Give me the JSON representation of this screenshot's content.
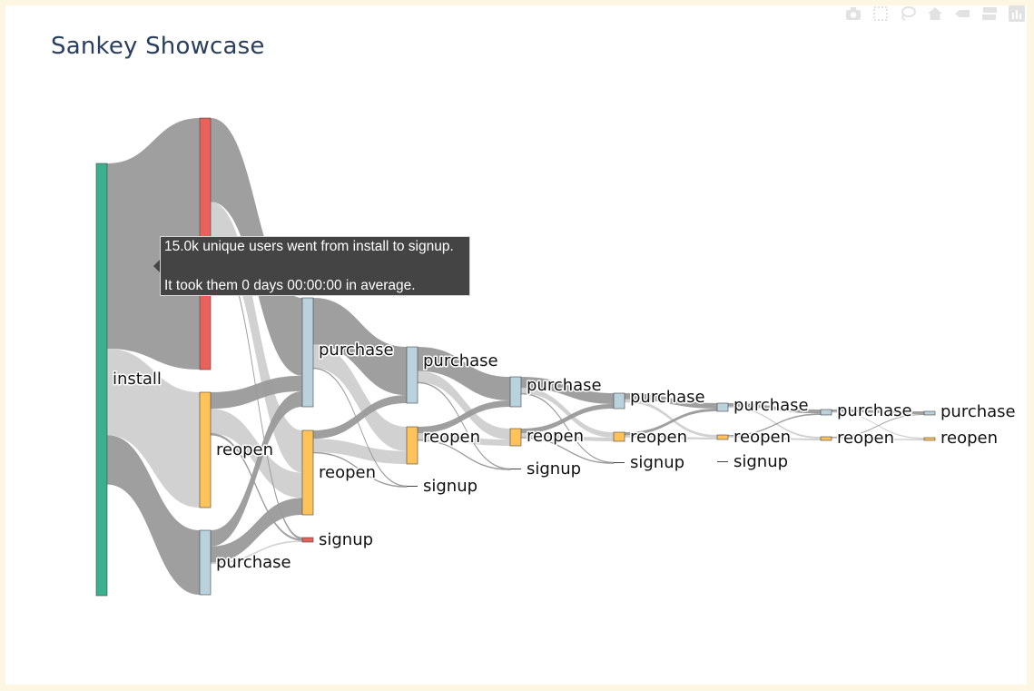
{
  "chart_data": {
    "type": "sankey",
    "title": "Sankey Showcase",
    "nodes": [
      {
        "id": "n0",
        "label": "install",
        "stage": 0,
        "value": 35.0,
        "color": "#3bb08f"
      },
      {
        "id": "n1",
        "label": "signup",
        "stage": 1,
        "value": 15.0,
        "color": "#e8615a"
      },
      {
        "id": "n2",
        "label": "reopen",
        "stage": 1,
        "value": 7.0,
        "color": "#ffc35a"
      },
      {
        "id": "n3",
        "label": "purchase",
        "stage": 1,
        "value": 4.0,
        "color": "#b9d2dd"
      },
      {
        "id": "n4",
        "label": "purchase",
        "stage": 2,
        "value": 7.0,
        "color": "#b9d2dd"
      },
      {
        "id": "n5",
        "label": "reopen",
        "stage": 2,
        "value": 5.0,
        "color": "#ffc35a"
      },
      {
        "id": "n6",
        "label": "signup",
        "stage": 2,
        "value": 0.3,
        "color": "#e8615a"
      },
      {
        "id": "n7",
        "label": "purchase",
        "stage": 3,
        "value": 3.5,
        "color": "#b9d2dd"
      },
      {
        "id": "n8",
        "label": "reopen",
        "stage": 3,
        "value": 2.3,
        "color": "#ffc35a"
      },
      {
        "id": "n9",
        "label": "signup",
        "stage": 3,
        "value": 0.05,
        "color": "#e8615a"
      },
      {
        "id": "n10",
        "label": "purchase",
        "stage": 4,
        "value": 1.9,
        "color": "#b9d2dd"
      },
      {
        "id": "n11",
        "label": "reopen",
        "stage": 4,
        "value": 1.1,
        "color": "#ffc35a"
      },
      {
        "id": "n12",
        "label": "signup",
        "stage": 4,
        "value": 0.05,
        "color": "#e8615a"
      },
      {
        "id": "n13",
        "label": "purchase",
        "stage": 5,
        "value": 1.0,
        "color": "#b9d2dd"
      },
      {
        "id": "n14",
        "label": "reopen",
        "stage": 5,
        "value": 0.6,
        "color": "#ffc35a"
      },
      {
        "id": "n15",
        "label": "signup",
        "stage": 5,
        "value": 0.05,
        "color": "#e8615a"
      },
      {
        "id": "n16",
        "label": "purchase",
        "stage": 6,
        "value": 0.6,
        "color": "#b9d2dd"
      },
      {
        "id": "n17",
        "label": "reopen",
        "stage": 6,
        "value": 0.35,
        "color": "#ffc35a"
      },
      {
        "id": "n18",
        "label": "signup",
        "stage": 6,
        "value": 0.05,
        "color": "#e8615a"
      },
      {
        "id": "n19",
        "label": "purchase",
        "stage": 7,
        "value": 0.35,
        "color": "#b9d2dd"
      },
      {
        "id": "n20",
        "label": "reopen",
        "stage": 7,
        "value": 0.2,
        "color": "#ffc35a"
      },
      {
        "id": "n21",
        "label": "purchase",
        "stage": 8,
        "value": 0.2,
        "color": "#b9d2dd"
      },
      {
        "id": "n22",
        "label": "reopen",
        "stage": 8,
        "value": 0.1,
        "color": "#ffc35a"
      }
    ],
    "links": [
      {
        "source": "n0",
        "target": "n1",
        "value": 15.0,
        "tone": "dark"
      },
      {
        "source": "n0",
        "target": "n2",
        "value": 7.0,
        "tone": "light"
      },
      {
        "source": "n0",
        "target": "n3",
        "value": 4.0,
        "tone": "dark"
      },
      {
        "source": "n1",
        "target": "n4",
        "value": 5.0,
        "tone": "dark"
      },
      {
        "source": "n1",
        "target": "n5",
        "value": 2.5,
        "tone": "light"
      },
      {
        "source": "n1",
        "target": "n6",
        "value": 0.1,
        "tone": "line"
      },
      {
        "source": "n2",
        "target": "n4",
        "value": 1.0,
        "tone": "dark"
      },
      {
        "source": "n2",
        "target": "n5",
        "value": 1.5,
        "tone": "light"
      },
      {
        "source": "n2",
        "target": "n6",
        "value": 0.1,
        "tone": "line"
      },
      {
        "source": "n3",
        "target": "n4",
        "value": 1.0,
        "tone": "dark"
      },
      {
        "source": "n3",
        "target": "n5",
        "value": 1.0,
        "tone": "dark"
      },
      {
        "source": "n3",
        "target": "n6",
        "value": 0.1,
        "tone": "light"
      },
      {
        "source": "n4",
        "target": "n7",
        "value": 3.0,
        "tone": "dark"
      },
      {
        "source": "n4",
        "target": "n8",
        "value": 1.5,
        "tone": "light"
      },
      {
        "source": "n4",
        "target": "n9",
        "value": 0.02,
        "tone": "line"
      },
      {
        "source": "n5",
        "target": "n7",
        "value": 0.5,
        "tone": "dark"
      },
      {
        "source": "n5",
        "target": "n8",
        "value": 0.8,
        "tone": "light"
      },
      {
        "source": "n5",
        "target": "n9",
        "value": 0.02,
        "tone": "line"
      },
      {
        "source": "n7",
        "target": "n10",
        "value": 1.5,
        "tone": "dark"
      },
      {
        "source": "n7",
        "target": "n11",
        "value": 0.7,
        "tone": "light"
      },
      {
        "source": "n7",
        "target": "n12",
        "value": 0.02,
        "tone": "line"
      },
      {
        "source": "n8",
        "target": "n10",
        "value": 0.4,
        "tone": "dark"
      },
      {
        "source": "n8",
        "target": "n11",
        "value": 0.4,
        "tone": "light"
      },
      {
        "source": "n8",
        "target": "n12",
        "value": 0.02,
        "tone": "line"
      },
      {
        "source": "n10",
        "target": "n13",
        "value": 0.7,
        "tone": "dark"
      },
      {
        "source": "n10",
        "target": "n14",
        "value": 0.35,
        "tone": "light"
      },
      {
        "source": "n10",
        "target": "n15",
        "value": 0.02,
        "tone": "line"
      },
      {
        "source": "n11",
        "target": "n13",
        "value": 0.3,
        "tone": "dark"
      },
      {
        "source": "n11",
        "target": "n14",
        "value": 0.25,
        "tone": "light"
      },
      {
        "source": "n11",
        "target": "n15",
        "value": 0.02,
        "tone": "line"
      },
      {
        "source": "n13",
        "target": "n16",
        "value": 0.4,
        "tone": "dark"
      },
      {
        "source": "n13",
        "target": "n17",
        "value": 0.2,
        "tone": "light"
      },
      {
        "source": "n14",
        "target": "n16",
        "value": 0.2,
        "tone": "dark"
      },
      {
        "source": "n14",
        "target": "n17",
        "value": 0.15,
        "tone": "light"
      },
      {
        "source": "n16",
        "target": "n19",
        "value": 0.25,
        "tone": "dark"
      },
      {
        "source": "n16",
        "target": "n20",
        "value": 0.1,
        "tone": "light"
      },
      {
        "source": "n17",
        "target": "n19",
        "value": 0.1,
        "tone": "dark"
      },
      {
        "source": "n17",
        "target": "n20",
        "value": 0.1,
        "tone": "light"
      },
      {
        "source": "n19",
        "target": "n21",
        "value": 0.15,
        "tone": "dark"
      },
      {
        "source": "n19",
        "target": "n22",
        "value": 0.05,
        "tone": "light"
      },
      {
        "source": "n20",
        "target": "n21",
        "value": 0.05,
        "tone": "dark"
      },
      {
        "source": "n20",
        "target": "n22",
        "value": 0.05,
        "tone": "light"
      }
    ],
    "tooltip": {
      "line1": "15.0k unique users went from install to signup.",
      "line2": "It took them 0 days 00:00:00 in average."
    }
  },
  "modebar": [
    {
      "icon": "camera-icon"
    },
    {
      "icon": "box-select-icon"
    },
    {
      "icon": "lasso-icon"
    },
    {
      "icon": "home-icon"
    },
    {
      "icon": "spike-icon"
    },
    {
      "icon": "compare-icon"
    },
    {
      "icon": "plotly-logo-icon"
    }
  ],
  "colors": {
    "background": "#fdf6e3",
    "plot_bg": "#ffffff",
    "title": "#2a3f5f",
    "link_dark": "#9a9a9a",
    "link_light": "#cfcfcf",
    "link_line": "#9a9a9a"
  }
}
